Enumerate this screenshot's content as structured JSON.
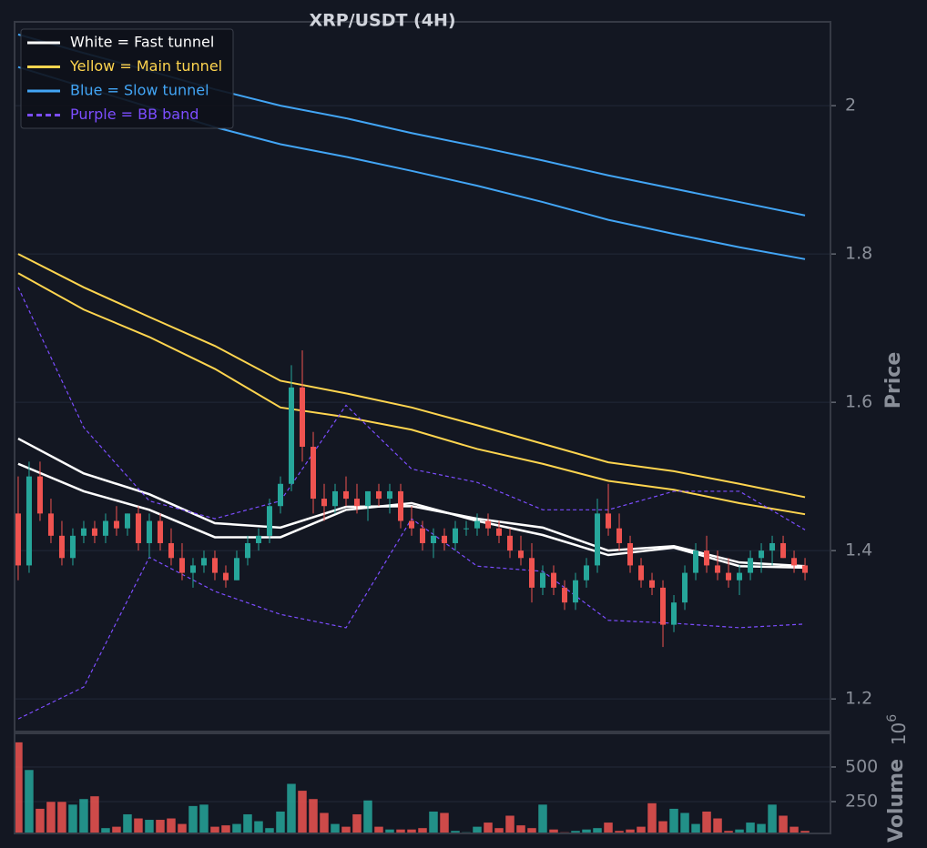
{
  "chart_data": [
    {
      "type": "candlestick",
      "title": "XRP/USDT (4H)",
      "ylabel": "Price",
      "xlim": [
        -0.33,
        74.33
      ],
      "ylim": [
        1.156,
        2.113
      ],
      "yticks": [
        1.2,
        1.4,
        1.6,
        1.8,
        2.0
      ],
      "grid": true,
      "legend": "upper left",
      "up_color": "#26a69a",
      "down_color": "#ef5350",
      "x": [
        0,
        1,
        2,
        3,
        4,
        5,
        6,
        7,
        8,
        9,
        10,
        11,
        12,
        13,
        14,
        15,
        16,
        17,
        18,
        19,
        20,
        21,
        22,
        23,
        24,
        25,
        26,
        27,
        28,
        29,
        30,
        31,
        32,
        33,
        34,
        35,
        36,
        37,
        38,
        39,
        40,
        41,
        42,
        43,
        44,
        45,
        46,
        47,
        48,
        49,
        50,
        51,
        52,
        53,
        54,
        55,
        56,
        57,
        58,
        59,
        60,
        61,
        62,
        63,
        64,
        65,
        66,
        67,
        68,
        69,
        70,
        71,
        72
      ],
      "open": [
        1.45,
        1.38,
        1.5,
        1.45,
        1.42,
        1.39,
        1.42,
        1.43,
        1.42,
        1.44,
        1.43,
        1.45,
        1.41,
        1.44,
        1.41,
        1.39,
        1.37,
        1.38,
        1.39,
        1.37,
        1.36,
        1.39,
        1.41,
        1.42,
        1.46,
        1.49,
        1.62,
        1.54,
        1.47,
        1.46,
        1.48,
        1.47,
        1.46,
        1.48,
        1.47,
        1.48,
        1.44,
        1.43,
        1.41,
        1.42,
        1.41,
        1.43,
        1.43,
        1.44,
        1.43,
        1.42,
        1.4,
        1.39,
        1.35,
        1.37,
        1.35,
        1.33,
        1.36,
        1.38,
        1.45,
        1.43,
        1.41,
        1.38,
        1.36,
        1.35,
        1.3,
        1.33,
        1.37,
        1.4,
        1.38,
        1.37,
        1.36,
        1.37,
        1.39,
        1.4,
        1.41,
        1.39,
        1.38
      ],
      "high": [
        1.5,
        1.52,
        1.52,
        1.47,
        1.44,
        1.43,
        1.44,
        1.44,
        1.45,
        1.46,
        1.45,
        1.46,
        1.45,
        1.45,
        1.43,
        1.41,
        1.39,
        1.4,
        1.4,
        1.38,
        1.4,
        1.42,
        1.43,
        1.47,
        1.5,
        1.65,
        1.67,
        1.56,
        1.49,
        1.49,
        1.5,
        1.49,
        1.48,
        1.49,
        1.49,
        1.49,
        1.46,
        1.44,
        1.43,
        1.43,
        1.44,
        1.44,
        1.45,
        1.45,
        1.44,
        1.43,
        1.42,
        1.41,
        1.38,
        1.38,
        1.36,
        1.37,
        1.39,
        1.47,
        1.49,
        1.45,
        1.42,
        1.39,
        1.37,
        1.36,
        1.34,
        1.38,
        1.41,
        1.42,
        1.4,
        1.39,
        1.38,
        1.4,
        1.41,
        1.42,
        1.42,
        1.4,
        1.39
      ],
      "low": [
        1.36,
        1.37,
        1.44,
        1.41,
        1.38,
        1.38,
        1.41,
        1.41,
        1.41,
        1.42,
        1.42,
        1.4,
        1.39,
        1.4,
        1.38,
        1.36,
        1.35,
        1.37,
        1.36,
        1.35,
        1.36,
        1.38,
        1.4,
        1.41,
        1.45,
        1.48,
        1.52,
        1.45,
        1.44,
        1.45,
        1.46,
        1.45,
        1.44,
        1.46,
        1.45,
        1.43,
        1.42,
        1.4,
        1.39,
        1.4,
        1.4,
        1.42,
        1.42,
        1.42,
        1.41,
        1.39,
        1.38,
        1.33,
        1.34,
        1.34,
        1.32,
        1.32,
        1.35,
        1.37,
        1.42,
        1.4,
        1.37,
        1.35,
        1.34,
        1.27,
        1.29,
        1.32,
        1.36,
        1.37,
        1.36,
        1.35,
        1.34,
        1.36,
        1.37,
        1.38,
        1.39,
        1.37,
        1.36
      ],
      "close": [
        1.38,
        1.5,
        1.45,
        1.42,
        1.39,
        1.42,
        1.43,
        1.42,
        1.44,
        1.43,
        1.45,
        1.41,
        1.44,
        1.41,
        1.39,
        1.37,
        1.38,
        1.39,
        1.37,
        1.36,
        1.39,
        1.41,
        1.42,
        1.46,
        1.49,
        1.62,
        1.54,
        1.47,
        1.46,
        1.48,
        1.47,
        1.46,
        1.48,
        1.47,
        1.48,
        1.44,
        1.43,
        1.41,
        1.42,
        1.41,
        1.43,
        1.43,
        1.44,
        1.43,
        1.42,
        1.4,
        1.39,
        1.35,
        1.37,
        1.35,
        1.33,
        1.36,
        1.38,
        1.45,
        1.43,
        1.41,
        1.38,
        1.36,
        1.35,
        1.3,
        1.33,
        1.37,
        1.4,
        1.38,
        1.37,
        1.36,
        1.37,
        1.39,
        1.4,
        1.41,
        1.39,
        1.38,
        1.37
      ],
      "series": [
        {
          "name": "White = Fast tunnel",
          "color": "#ffffff",
          "dash": false,
          "width": 2.5,
          "lines": [
            {
              "x": [
                0,
                6,
                12,
                18,
                24,
                30,
                36,
                42,
                48,
                54,
                60,
                66,
                72
              ],
              "values": [
                1.551,
                1.504,
                1.476,
                1.437,
                1.431,
                1.459,
                1.46,
                1.443,
                1.431,
                1.4,
                1.406,
                1.384,
                1.379
              ]
            },
            {
              "x": [
                0,
                6,
                12,
                18,
                24,
                30,
                36,
                42,
                48,
                54,
                60,
                66,
                72
              ],
              "values": [
                1.517,
                1.48,
                1.455,
                1.418,
                1.418,
                1.455,
                1.464,
                1.44,
                1.421,
                1.394,
                1.404,
                1.379,
                1.377
              ]
            }
          ]
        },
        {
          "name": "Yellow = Main tunnel",
          "color": "#ffd54f",
          "dash": false,
          "width": 2,
          "lines": [
            {
              "x": [
                0,
                6,
                12,
                18,
                24,
                30,
                36,
                42,
                48,
                54,
                60,
                66,
                72
              ],
              "values": [
                1.8,
                1.755,
                1.715,
                1.676,
                1.629,
                1.612,
                1.593,
                1.569,
                1.544,
                1.519,
                1.507,
                1.49,
                1.472
              ]
            },
            {
              "x": [
                0,
                6,
                12,
                18,
                24,
                30,
                36,
                42,
                48,
                54,
                60,
                66,
                72
              ],
              "values": [
                1.774,
                1.725,
                1.688,
                1.645,
                1.593,
                1.58,
                1.563,
                1.537,
                1.517,
                1.494,
                1.482,
                1.464,
                1.449
              ]
            }
          ]
        },
        {
          "name": "Blue = Slow tunnel",
          "color": "#42a5f5",
          "dash": false,
          "width": 2,
          "lines": [
            {
              "x": [
                0,
                6,
                12,
                18,
                24,
                30,
                36,
                42,
                48,
                54,
                60,
                66,
                72
              ],
              "values": [
                2.096,
                2.071,
                2.047,
                2.022,
                2.0,
                1.983,
                1.963,
                1.945,
                1.926,
                1.906,
                1.888,
                1.87,
                1.852
              ]
            },
            {
              "x": [
                0,
                6,
                12,
                18,
                24,
                30,
                36,
                42,
                48,
                54,
                60,
                66,
                72
              ],
              "values": [
                2.052,
                2.025,
                1.998,
                1.971,
                1.948,
                1.931,
                1.912,
                1.892,
                1.87,
                1.846,
                1.827,
                1.809,
                1.793
              ]
            }
          ]
        },
        {
          "name": "Purple = BB band",
          "color": "#7c4dff",
          "dash": true,
          "width": 1.2,
          "lines": [
            {
              "x": [
                0,
                6,
                12,
                18,
                24,
                30,
                36,
                42,
                48,
                54,
                60,
                66,
                72
              ],
              "values": [
                1.755,
                1.566,
                1.467,
                1.443,
                1.467,
                1.596,
                1.51,
                1.492,
                1.455,
                1.455,
                1.48,
                1.48,
                1.428
              ]
            },
            {
              "x": [
                0,
                6,
                12,
                18,
                24,
                30,
                36,
                42,
                48,
                54,
                60,
                66,
                72
              ],
              "values": [
                1.173,
                1.216,
                1.391,
                1.345,
                1.314,
                1.296,
                1.443,
                1.379,
                1.372,
                1.306,
                1.302,
                1.296,
                1.301
              ]
            }
          ]
        }
      ]
    },
    {
      "type": "bar",
      "ylabel": "Volume",
      "offset": {
        "base": "10",
        "exponent": "6"
      },
      "xlim": [
        -0.33,
        74.33
      ],
      "ylim": [
        20,
        743
      ],
      "yticks": [
        250,
        500
      ],
      "grid": true,
      "up_color": "#26a69a",
      "down_color": "#ef5350",
      "x": [
        0,
        1,
        2,
        3,
        4,
        5,
        6,
        7,
        8,
        9,
        10,
        11,
        12,
        13,
        14,
        15,
        16,
        17,
        18,
        19,
        20,
        21,
        22,
        23,
        24,
        25,
        26,
        27,
        28,
        29,
        30,
        31,
        32,
        33,
        34,
        35,
        36,
        37,
        38,
        39,
        40,
        41,
        42,
        43,
        44,
        45,
        46,
        47,
        48,
        49,
        50,
        51,
        52,
        53,
        54,
        55,
        56,
        57,
        58,
        59,
        60,
        61,
        62,
        63,
        64,
        65,
        66,
        67,
        68,
        69,
        70,
        71,
        72
      ],
      "values": [
        680,
        480,
        200,
        250,
        250,
        230,
        270,
        290,
        60,
        70,
        160,
        130,
        120,
        120,
        130,
        90,
        220,
        230,
        70,
        80,
        90,
        160,
        110,
        60,
        180,
        380,
        330,
        270,
        170,
        90,
        70,
        160,
        260,
        70,
        50,
        50,
        50,
        60,
        180,
        170,
        40,
        30,
        70,
        100,
        60,
        150,
        80,
        60,
        230,
        50,
        30,
        40,
        50,
        60,
        100,
        40,
        50,
        70,
        240,
        110,
        200,
        170,
        90,
        180,
        130,
        40,
        50,
        100,
        90,
        230,
        150,
        70,
        40
      ]
    }
  ]
}
